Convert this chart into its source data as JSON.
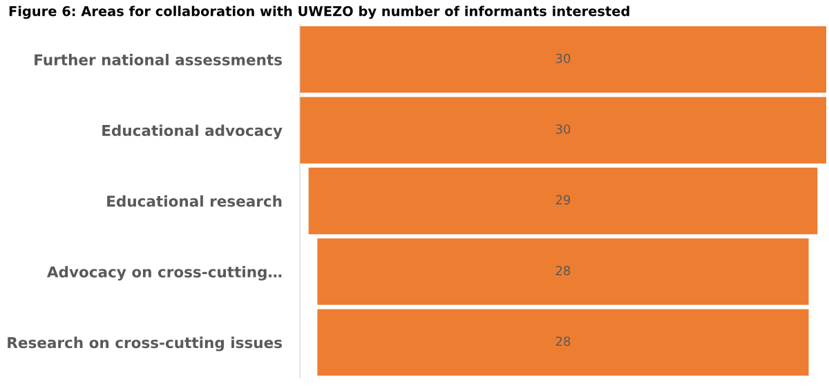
{
  "chart_data": {
    "type": "other",
    "title": "Figure 6: Areas for collaboration with UWEZO by number of informants interested",
    "categories": [
      "Further national assessments",
      "Educational advocacy",
      "Educational research",
      "Advocacy on cross-cutting…",
      "Research on cross-cutting issues"
    ],
    "values": [
      30,
      30,
      29,
      28,
      28
    ],
    "color": "#ed7d31",
    "data_labels": true
  }
}
